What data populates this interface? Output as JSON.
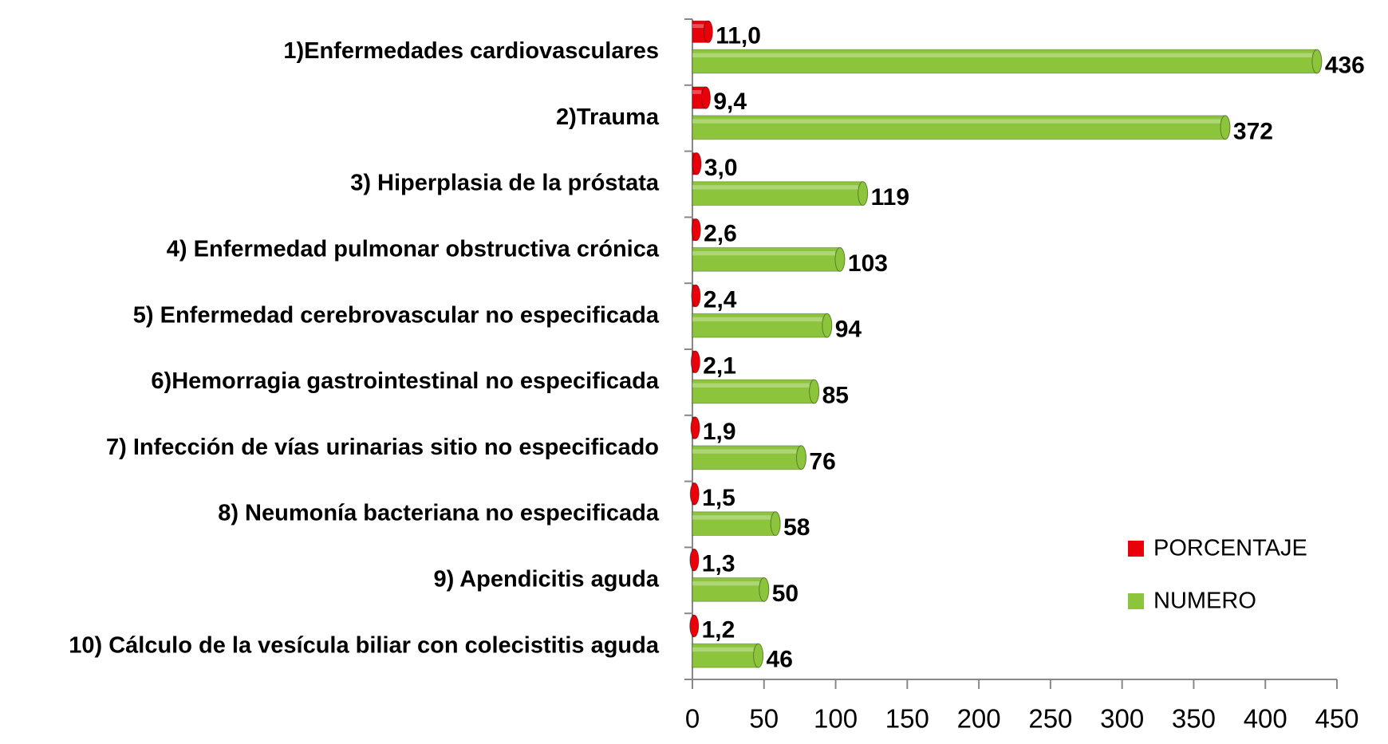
{
  "chart_data": {
    "type": "bar",
    "orientation": "horizontal",
    "categories": [
      "1)Enfermedades cardiovasculares",
      "2)Trauma",
      "3) Hiperplasia de la próstata",
      "4) Enfermedad pulmonar obstructiva crónica",
      "5) Enfermedad cerebrovascular no especificada",
      "6)Hemorragia gastrointestinal no especificada",
      "7) Infección de vías urinarias sitio no especificado",
      "8) Neumonía bacteriana no especificada",
      "9) Apendicitis aguda",
      "10) Cálculo de la vesícula biliar con colecistitis aguda"
    ],
    "series": [
      {
        "name": "PORCENTAJE",
        "color": "#e8000b",
        "values": [
          11.0,
          9.4,
          3.0,
          2.6,
          2.4,
          2.1,
          1.9,
          1.5,
          1.3,
          1.2
        ],
        "value_labels": [
          "11,0",
          "9,4",
          "3,0",
          "2,6",
          "2,4",
          "2,1",
          "1,9",
          "1,5",
          "1,3",
          "1,2"
        ]
      },
      {
        "name": "NUMERO",
        "color": "#8cc43c",
        "values": [
          436,
          372,
          119,
          103,
          94,
          85,
          76,
          58,
          50,
          46
        ]
      }
    ],
    "xlim": [
      0,
      450
    ],
    "xticks": [
      0,
      50,
      100,
      150,
      200,
      250,
      300,
      350,
      400,
      450
    ],
    "legend": "lower right"
  }
}
